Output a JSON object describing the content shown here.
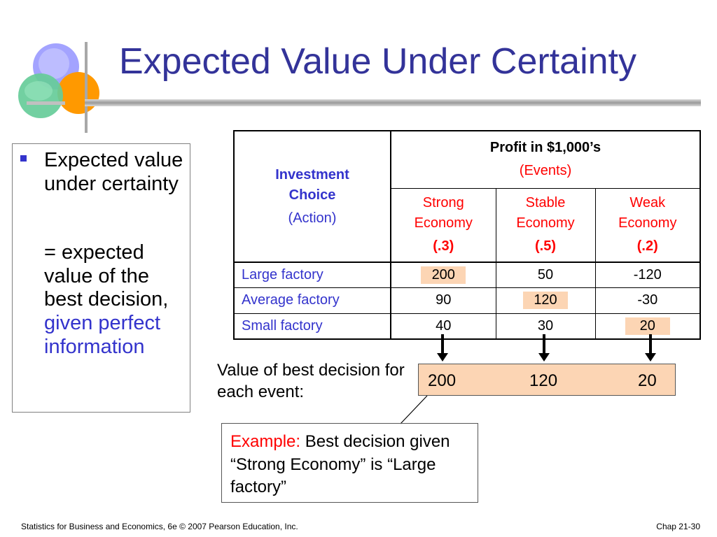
{
  "title": "Expected Value Under Certainty",
  "bullet": {
    "line1": "Expected value under certainty",
    "line2_prefix": "= expected value of the best decision,",
    "line2_highlight": "given perfect information"
  },
  "table": {
    "row_header": {
      "line1": "Investment",
      "line2": "Choice",
      "line3": "(Action)"
    },
    "events_header": {
      "line1": "Profit in $1,000’s",
      "line2": "(Events)"
    },
    "columns": [
      {
        "line1": "Strong",
        "line2": "Economy",
        "prob": "(.3)"
      },
      {
        "line1": "Stable",
        "line2": "Economy",
        "prob": "(.5)"
      },
      {
        "line1": "Weak",
        "line2": "Economy",
        "prob": "(.2)"
      }
    ],
    "rows": [
      {
        "label": "Large factory",
        "values": [
          "200",
          "50",
          "-120"
        ]
      },
      {
        "label": "Average factory",
        "values": [
          "90",
          "120",
          "-30"
        ]
      },
      {
        "label": "Small factory",
        "values": [
          "40",
          "30",
          "20"
        ]
      }
    ]
  },
  "best": {
    "label": "Value of best decision for each event:",
    "values": [
      "200",
      "120",
      "20"
    ]
  },
  "example": {
    "prefix": "Example:",
    "text": "Best decision given “Strong Economy” is “Large factory”"
  },
  "footer": {
    "left": "Statistics for Business and Economics, 6e © 2007 Pearson Education, Inc.",
    "right": "Chap 21-30"
  },
  "colors": {
    "title": "#333399",
    "accent_blue": "#3333cc",
    "highlight": "#fcd5b4",
    "example_red": "#ff0000"
  }
}
